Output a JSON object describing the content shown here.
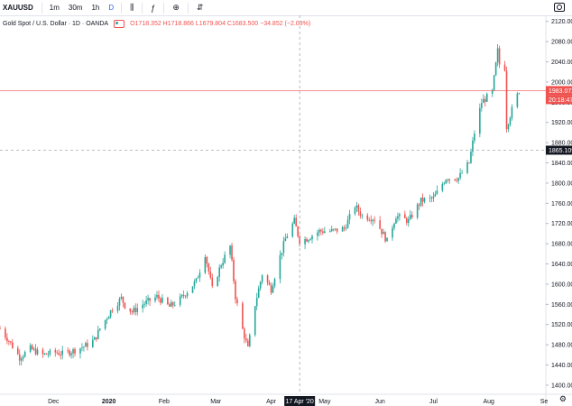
{
  "toolbar": {
    "symbol": "XAUUSD",
    "intervals": [
      "1m",
      "30m",
      "1h",
      "D"
    ],
    "active_interval": "D"
  },
  "legend": {
    "title": "Gold Spot / U.S. Dollar · 1D · OANDA",
    "values": "O1718.352 H1718.866 L1679.804 C1683.500 −34.852 (−2.03%)"
  },
  "chart_data": {
    "type": "candlestick",
    "ylim": [
      1382,
      2132
    ],
    "y_ticks": [
      1400,
      1440,
      1480,
      1520,
      1560,
      1600,
      1640,
      1680,
      1720,
      1760,
      1800,
      1840,
      1880,
      1920,
      1960,
      2000,
      2040,
      2080,
      2120
    ],
    "x_ticks": [
      "Dec",
      "2020",
      "Feb",
      "Mar",
      "Apr",
      "May",
      "Jun",
      "Jul",
      "Aug",
      "Se"
    ],
    "price_line": {
      "value": 1983.072,
      "label": "1983.072",
      "countdown": "20:18:47",
      "color": "#ef5350"
    },
    "crosshair": {
      "x_label": "17 Apr '20",
      "y_value": 1865.109,
      "y_label": "1865.109"
    },
    "colors": {
      "up": "#26a69a",
      "down": "#ef5350"
    },
    "closes_key": [
      [
        "2019-11-01",
        1512
      ],
      [
        "2019-11-06",
        1488
      ],
      [
        "2019-11-12",
        1455
      ],
      [
        "2019-11-18",
        1472
      ],
      [
        "2019-11-25",
        1460
      ],
      [
        "2019-12-02",
        1465
      ],
      [
        "2019-12-06",
        1462
      ],
      [
        "2019-12-12",
        1468
      ],
      [
        "2019-12-19",
        1478
      ],
      [
        "2019-12-24",
        1490
      ],
      [
        "2019-12-27",
        1512
      ],
      [
        "2020-01-03",
        1552
      ],
      [
        "2020-01-08",
        1572
      ],
      [
        "2020-01-10",
        1558
      ],
      [
        "2020-01-14",
        1545
      ],
      [
        "2020-01-20",
        1560
      ],
      [
        "2020-01-28",
        1575
      ],
      [
        "2020-02-04",
        1555
      ],
      [
        "2020-02-10",
        1570
      ],
      [
        "2020-02-19",
        1606
      ],
      [
        "2020-02-24",
        1660
      ],
      [
        "2020-02-28",
        1590
      ],
      [
        "2020-03-04",
        1640
      ],
      [
        "2020-03-09",
        1675
      ],
      [
        "2020-03-12",
        1575
      ],
      [
        "2020-03-16",
        1510
      ],
      [
        "2020-03-19",
        1472
      ],
      [
        "2020-03-23",
        1560
      ],
      [
        "2020-03-27",
        1620
      ],
      [
        "2020-04-01",
        1590
      ],
      [
        "2020-04-06",
        1655
      ],
      [
        "2020-04-09",
        1690
      ],
      [
        "2020-04-14",
        1725
      ],
      [
        "2020-04-17",
        1685
      ],
      [
        "2020-04-21",
        1690
      ],
      [
        "2020-04-28",
        1705
      ],
      [
        "2020-05-05",
        1705
      ],
      [
        "2020-05-12",
        1710
      ],
      [
        "2020-05-18",
        1755
      ],
      [
        "2020-05-22",
        1735
      ],
      [
        "2020-05-29",
        1730
      ],
      [
        "2020-06-05",
        1685
      ],
      [
        "2020-06-10",
        1735
      ],
      [
        "2020-06-17",
        1725
      ],
      [
        "2020-06-24",
        1765
      ],
      [
        "2020-07-01",
        1770
      ],
      [
        "2020-07-08",
        1810
      ],
      [
        "2020-07-15",
        1810
      ],
      [
        "2020-07-21",
        1840
      ],
      [
        "2020-07-24",
        1900
      ],
      [
        "2020-07-28",
        1960
      ],
      [
        "2020-08-03",
        1980
      ],
      [
        "2020-08-06",
        2062
      ],
      [
        "2020-08-07",
        2035
      ],
      [
        "2020-08-10",
        2028
      ],
      [
        "2020-08-11",
        1912
      ],
      [
        "2020-08-14",
        1945
      ],
      [
        "2020-08-18",
        1983
      ]
    ]
  }
}
